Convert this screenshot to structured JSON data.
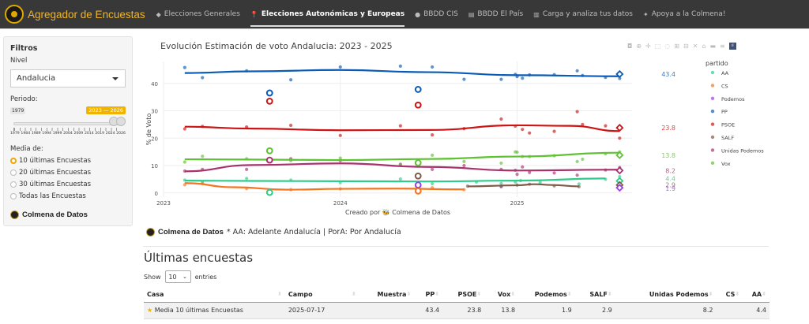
{
  "navbar": {
    "title": "Agregador de Encuestas",
    "items": [
      {
        "label": "Elecciones Generales",
        "icon": "ballot-box-icon",
        "glyph": "◆",
        "active": false
      },
      {
        "label": "Elecciones Autonómicas y Europeas",
        "icon": "map-pin-icon",
        "glyph": "📍",
        "active": true
      },
      {
        "label": "BBDD CIS",
        "icon": "database-icon",
        "glyph": "●",
        "active": false
      },
      {
        "label": "BBDD El País",
        "icon": "floppy-icon",
        "glyph": "▤",
        "active": false
      },
      {
        "label": "Carga y analiza tus datos",
        "icon": "chart-icon",
        "glyph": "▥",
        "active": false
      },
      {
        "label": "Apoya a la Colmena!",
        "icon": "bee-icon",
        "glyph": "✦",
        "active": false
      }
    ]
  },
  "sidebar": {
    "title": "Filtros",
    "nivel_label": "Nivel",
    "nivel_value": "Andalucia",
    "periodo_label": "Periodo:",
    "slider": {
      "min_label": "1979",
      "range_label": "2023 — 2026",
      "min": 1979,
      "max": 2026,
      "from": 2023,
      "to": 2026,
      "ticks": [
        "1979",
        "1984",
        "1989",
        "1994",
        "1999",
        "2004",
        "2009",
        "2014",
        "2019",
        "2024",
        "2026"
      ]
    },
    "media_label": "Media de:",
    "options": [
      {
        "label": "10 últimas Encuestas",
        "selected": true
      },
      {
        "label": "20 últimas Encuestas",
        "selected": false
      },
      {
        "label": "30 últimas Encuestas",
        "selected": false
      },
      {
        "label": "Todas las Encuestas",
        "selected": false
      }
    ],
    "brand": "Colmena de Datos"
  },
  "caption": {
    "brand": "Colmena de Datos",
    "note": "* AA: Adelante Andalucía | PorA: Por Andalucía"
  },
  "table_section": {
    "title": "Últimas encuestas",
    "show": "Show",
    "entries_value": "10",
    "entries": "entries",
    "columns": [
      "Casa",
      "Campo",
      "Muestra",
      "PP",
      "PSOE",
      "Vox",
      "Podemos",
      "SALF",
      "Unidas Podemos",
      "CS",
      "AA"
    ],
    "rows": [
      {
        "Casa": "Media 10 últimas Encuestas",
        "Campo": "2025-07-17",
        "Muestra": "",
        "PP": "43.4",
        "PSOE": "23.8",
        "Vox": "13.8",
        "Podemos": "1.9",
        "SALF": "2.9",
        "Unidas Podemos": "8.2",
        "CS": "",
        "AA": "4.4"
      }
    ]
  },
  "chart_data": {
    "type": "line",
    "title": "Evolución Estimación de voto Andalucia: 2023 - 2025",
    "xlabel": "Creado por 🐝 Colmena de Datos",
    "ylabel": "% de Voto",
    "xlim": [
      2023.0,
      2025.65
    ],
    "ylim": [
      -1.5,
      48
    ],
    "x_ticks": [
      "2023",
      "2024",
      "2025"
    ],
    "y_ticks": [
      0,
      10,
      20,
      30,
      40
    ],
    "grid": true,
    "legend_title": "partido",
    "legend_position": "right",
    "series": [
      {
        "name": "AA",
        "color": "#2ecc8a",
        "trend": [
          [
            2023.12,
            4.5
          ],
          [
            2023.5,
            4.4
          ],
          [
            2024.0,
            4.3
          ],
          [
            2024.5,
            4.2
          ],
          [
            2025.0,
            4.5
          ],
          [
            2025.5,
            5.3
          ]
        ],
        "points": [
          [
            2023.12,
            4.7
          ],
          [
            2023.22,
            4.0
          ],
          [
            2023.47,
            5.3
          ],
          [
            2023.72,
            4.7
          ],
          [
            2024.0,
            3.8
          ],
          [
            2024.34,
            5.1
          ],
          [
            2024.52,
            3.4
          ],
          [
            2024.77,
            4.0
          ],
          [
            2024.91,
            3.5
          ],
          [
            2024.99,
            4.0
          ],
          [
            2025.02,
            4.5
          ],
          [
            2025.13,
            3.8
          ],
          [
            2025.35,
            3.3
          ],
          [
            2025.5,
            5.0
          ],
          [
            2025.58,
            6.0
          ]
        ],
        "label_value": "4.4"
      },
      {
        "name": "CS",
        "color": "#f47520",
        "trend": [
          [
            2023.12,
            3.6
          ],
          [
            2023.4,
            2.1
          ],
          [
            2023.7,
            1.2
          ],
          [
            2024.0,
            1.5
          ],
          [
            2024.3,
            1.6
          ],
          [
            2024.7,
            1.3
          ]
        ],
        "points": [
          [
            2023.12,
            3.0
          ],
          [
            2023.22,
            3.4
          ],
          [
            2023.47,
            1.6
          ],
          [
            2023.72,
            1.2
          ],
          [
            2024.0,
            1.5
          ],
          [
            2024.52,
            1.9
          ],
          [
            2024.7,
            1.2
          ]
        ],
        "label_value": ""
      },
      {
        "name": "Podemos",
        "color": "#9b3fe8",
        "trend": [],
        "points": [
          [
            2024.91,
            2.3
          ],
          [
            2025.58,
            1.4
          ]
        ],
        "label_value": "1.9"
      },
      {
        "name": "PP",
        "color": "#0a5bb5",
        "trend": [
          [
            2023.12,
            43.8
          ],
          [
            2023.5,
            44.4
          ],
          [
            2024.0,
            44.9
          ],
          [
            2024.5,
            44.1
          ],
          [
            2025.0,
            43.0
          ],
          [
            2025.58,
            42.6
          ]
        ],
        "points": [
          [
            2023.12,
            45.8
          ],
          [
            2023.22,
            42.1
          ],
          [
            2023.47,
            44.6
          ],
          [
            2023.72,
            41.3
          ],
          [
            2024.0,
            46.0
          ],
          [
            2024.34,
            46.3
          ],
          [
            2024.52,
            46.0
          ],
          [
            2024.7,
            41.5
          ],
          [
            2024.91,
            41.5
          ],
          [
            2024.99,
            43.3
          ],
          [
            2025.0,
            42.5
          ],
          [
            2025.03,
            41.9
          ],
          [
            2025.07,
            43.1
          ],
          [
            2025.21,
            43.2
          ],
          [
            2025.34,
            44.6
          ],
          [
            2025.37,
            42.9
          ],
          [
            2025.5,
            42.2
          ],
          [
            2025.58,
            41.8
          ]
        ],
        "label_value": "43.4"
      },
      {
        "name": "PSOE",
        "color": "#cc1414",
        "trend": [
          [
            2023.12,
            24.2
          ],
          [
            2023.5,
            23.5
          ],
          [
            2024.0,
            22.9
          ],
          [
            2024.5,
            23.0
          ],
          [
            2025.0,
            24.7
          ],
          [
            2025.3,
            24.5
          ],
          [
            2025.58,
            22.6
          ]
        ],
        "points": [
          [
            2023.12,
            23.4
          ],
          [
            2023.22,
            24.3
          ],
          [
            2023.47,
            24.1
          ],
          [
            2023.72,
            24.7
          ],
          [
            2024.0,
            21.0
          ],
          [
            2024.34,
            24.5
          ],
          [
            2024.52,
            21.2
          ],
          [
            2024.7,
            23.5
          ],
          [
            2024.91,
            27.0
          ],
          [
            2024.99,
            24.4
          ],
          [
            2025.03,
            23.2
          ],
          [
            2025.07,
            21.9
          ],
          [
            2025.21,
            22.5
          ],
          [
            2025.34,
            29.7
          ],
          [
            2025.37,
            25.0
          ],
          [
            2025.5,
            24.5
          ],
          [
            2025.58,
            20.0
          ]
        ],
        "label_value": "23.8"
      },
      {
        "name": "SALF",
        "color": "#7d5a4a",
        "trend": [
          [
            2024.72,
            2.4
          ],
          [
            2025.0,
            2.8
          ],
          [
            2025.1,
            3.2
          ],
          [
            2025.2,
            2.9
          ],
          [
            2025.35,
            2.4
          ]
        ],
        "points": [
          [
            2024.72,
            2.5
          ],
          [
            2024.91,
            2.5
          ],
          [
            2025.0,
            2.9
          ],
          [
            2025.07,
            3.2
          ],
          [
            2025.21,
            2.6
          ],
          [
            2025.35,
            2.3
          ],
          [
            2025.58,
            2.8
          ]
        ],
        "label_value": "2.9"
      },
      {
        "name": "Unidas Podemos",
        "color": "#a8326e",
        "trend": [
          [
            2023.12,
            7.9
          ],
          [
            2023.5,
            10.2
          ],
          [
            2024.0,
            10.8
          ],
          [
            2024.5,
            9.5
          ],
          [
            2025.0,
            8.2
          ],
          [
            2025.58,
            8.5
          ]
        ],
        "points": [
          [
            2023.12,
            8.0
          ],
          [
            2023.22,
            8.6
          ],
          [
            2023.47,
            8.6
          ],
          [
            2023.72,
            12.5
          ],
          [
            2024.0,
            11.8
          ],
          [
            2024.34,
            10.5
          ],
          [
            2024.52,
            8.6
          ],
          [
            2024.7,
            10.0
          ],
          [
            2024.91,
            8.6
          ],
          [
            2024.99,
            8.3
          ],
          [
            2025.0,
            6.8
          ],
          [
            2025.03,
            9.5
          ],
          [
            2025.07,
            7.5
          ],
          [
            2025.21,
            7.3
          ],
          [
            2025.34,
            6.5
          ],
          [
            2025.5,
            8.4
          ],
          [
            2025.58,
            9.3
          ]
        ],
        "label_value": "8.2"
      },
      {
        "name": "Vox",
        "color": "#5ec232",
        "trend": [
          [
            2023.12,
            12.3
          ],
          [
            2023.5,
            12.2
          ],
          [
            2024.0,
            12.0
          ],
          [
            2024.5,
            12.4
          ],
          [
            2025.0,
            13.3
          ],
          [
            2025.58,
            14.7
          ]
        ],
        "points": [
          [
            2023.12,
            11.3
          ],
          [
            2023.22,
            13.4
          ],
          [
            2023.47,
            12.5
          ],
          [
            2023.72,
            11.8
          ],
          [
            2024.0,
            12.7
          ],
          [
            2024.34,
            10.2
          ],
          [
            2024.52,
            13.8
          ],
          [
            2024.7,
            11.5
          ],
          [
            2024.91,
            10.9
          ],
          [
            2024.99,
            15.0
          ],
          [
            2025.0,
            14.9
          ],
          [
            2025.03,
            13.3
          ],
          [
            2025.07,
            13.3
          ],
          [
            2025.21,
            13.6
          ],
          [
            2025.34,
            11.5
          ],
          [
            2025.37,
            12.3
          ],
          [
            2025.5,
            14.3
          ],
          [
            2025.58,
            15.0
          ]
        ],
        "label_value": "13.8"
      }
    ],
    "elections": [
      {
        "x": 2023.6,
        "values": {
          "PP": 36.5,
          "PSOE": 33.5,
          "Vox": 15.4,
          "Unidas Podemos": 12.0,
          "AA": 0.2
        }
      },
      {
        "x": 2024.44,
        "values": {
          "PP": 37.8,
          "PSOE": 32.1,
          "Vox": 11.0,
          "SALF": 6.2,
          "Podemos": 2.9,
          "CS": 0.7
        }
      }
    ],
    "current_average": {
      "x": 2025.58,
      "values": {
        "PP": 43.4,
        "PSOE": 23.8,
        "Vox": 13.8,
        "Unidas Podemos": 8.2,
        "AA": 4.4,
        "SALF": 2.9,
        "Podemos": 1.9
      }
    },
    "modebar": [
      "camera-icon",
      "zoom-icon",
      "pan-icon",
      "box-select-icon",
      "lasso-icon",
      "zoom-in-icon",
      "zoom-out-icon",
      "autoscale-icon",
      "reset-axes-icon",
      "spike-lines-icon",
      "compare-hover-icon",
      "plotly-logo"
    ]
  }
}
